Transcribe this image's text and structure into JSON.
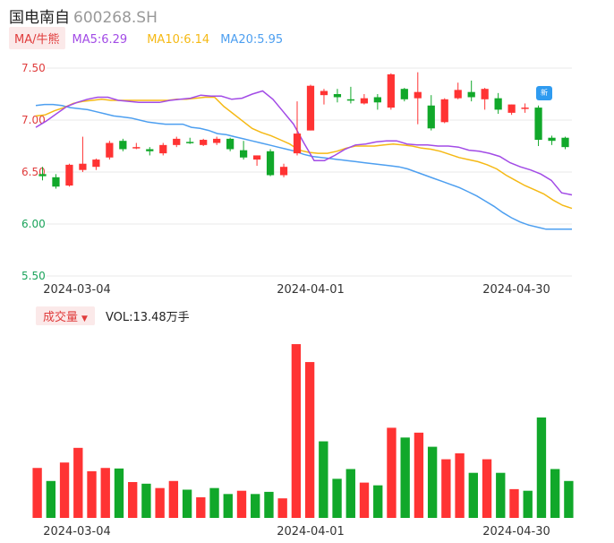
{
  "header": {
    "name": "国电南自",
    "code": "600268.SH"
  },
  "legend": {
    "ma_button": "MA/牛熊",
    "ma5": "MA5:6.29",
    "ma10": "MA10:6.14",
    "ma20": "MA20:5.95"
  },
  "volume_bar": {
    "button": "成交量",
    "text": "VOL:13.48万手"
  },
  "badge": {
    "text": "新"
  },
  "colors": {
    "up": "#ff3333",
    "down": "#11a82a",
    "ma5": "#a24be6",
    "ma10": "#f5b915",
    "ma20": "#4d9ff0"
  },
  "chart_data": [
    {
      "type": "candlestick",
      "y_ticks": [
        "7.50",
        "7.00",
        "6.50",
        "6.00",
        "5.50"
      ],
      "x_ticks": [
        "2024-03-04",
        "2024-04-01",
        "2024-04-30"
      ],
      "ylim": [
        5.5,
        7.5
      ],
      "candles": [
        {
          "o": 6.48,
          "c": 6.46,
          "h": 6.55,
          "l": 6.42
        },
        {
          "o": 6.45,
          "c": 6.36,
          "h": 6.48,
          "l": 6.34
        },
        {
          "o": 6.37,
          "c": 6.57,
          "h": 6.58,
          "l": 6.36
        },
        {
          "o": 6.52,
          "c": 6.58,
          "h": 6.84,
          "l": 6.5
        },
        {
          "o": 6.55,
          "c": 6.62,
          "h": 6.63,
          "l": 6.52
        },
        {
          "o": 6.64,
          "c": 6.78,
          "h": 6.8,
          "l": 6.62
        },
        {
          "o": 6.8,
          "c": 6.72,
          "h": 6.82,
          "l": 6.7
        },
        {
          "o": 6.74,
          "c": 6.74,
          "h": 6.78,
          "l": 6.72
        },
        {
          "o": 6.72,
          "c": 6.7,
          "h": 6.74,
          "l": 6.66
        },
        {
          "o": 6.68,
          "c": 6.76,
          "h": 6.78,
          "l": 6.66
        },
        {
          "o": 6.76,
          "c": 6.82,
          "h": 6.84,
          "l": 6.74
        },
        {
          "o": 6.79,
          "c": 6.78,
          "h": 6.83,
          "l": 6.77
        },
        {
          "o": 6.76,
          "c": 6.81,
          "h": 6.82,
          "l": 6.75
        },
        {
          "o": 6.78,
          "c": 6.82,
          "h": 6.84,
          "l": 6.76
        },
        {
          "o": 6.82,
          "c": 6.72,
          "h": 6.83,
          "l": 6.7
        },
        {
          "o": 6.71,
          "c": 6.64,
          "h": 6.8,
          "l": 6.62
        },
        {
          "o": 6.62,
          "c": 6.66,
          "h": 6.66,
          "l": 6.56
        },
        {
          "o": 6.7,
          "c": 6.47,
          "h": 6.72,
          "l": 6.46
        },
        {
          "o": 6.47,
          "c": 6.55,
          "h": 6.58,
          "l": 6.45
        },
        {
          "o": 6.68,
          "c": 6.87,
          "h": 7.18,
          "l": 6.66
        },
        {
          "o": 6.9,
          "c": 7.33,
          "h": 7.34,
          "l": 6.9
        },
        {
          "o": 7.24,
          "c": 7.28,
          "h": 7.3,
          "l": 7.15
        },
        {
          "o": 7.25,
          "c": 7.22,
          "h": 7.3,
          "l": 7.17
        },
        {
          "o": 7.2,
          "c": 7.19,
          "h": 7.32,
          "l": 7.16
        },
        {
          "o": 7.16,
          "c": 7.21,
          "h": 7.25,
          "l": 7.15
        },
        {
          "o": 7.22,
          "c": 7.17,
          "h": 7.25,
          "l": 7.1
        },
        {
          "o": 7.12,
          "c": 7.44,
          "h": 7.45,
          "l": 7.1
        },
        {
          "o": 7.3,
          "c": 7.2,
          "h": 7.31,
          "l": 7.18
        },
        {
          "o": 7.21,
          "c": 7.27,
          "h": 7.46,
          "l": 6.96
        },
        {
          "o": 7.14,
          "c": 6.92,
          "h": 7.24,
          "l": 6.9
        },
        {
          "o": 6.98,
          "c": 7.2,
          "h": 7.21,
          "l": 6.97
        },
        {
          "o": 7.21,
          "c": 7.29,
          "h": 7.36,
          "l": 7.2
        },
        {
          "o": 7.27,
          "c": 7.22,
          "h": 7.38,
          "l": 7.18
        },
        {
          "o": 7.2,
          "c": 7.3,
          "h": 7.31,
          "l": 7.1
        },
        {
          "o": 7.21,
          "c": 7.1,
          "h": 7.26,
          "l": 7.06
        },
        {
          "o": 7.07,
          "c": 7.15,
          "h": 7.15,
          "l": 7.05
        },
        {
          "o": 7.12,
          "c": 7.12,
          "h": 7.16,
          "l": 7.07
        },
        {
          "o": 7.12,
          "c": 6.81,
          "h": 7.14,
          "l": 6.75
        },
        {
          "o": 6.83,
          "c": 6.8,
          "h": 6.85,
          "l": 6.76
        },
        {
          "o": 6.83,
          "c": 6.74,
          "h": 6.84,
          "l": 6.72
        }
      ],
      "ma5": [
        6.93,
        6.99,
        7.06,
        7.13,
        7.17,
        7.2,
        7.22,
        7.22,
        7.19,
        7.18,
        7.17,
        7.17,
        7.17,
        7.19,
        7.2,
        7.21,
        7.24,
        7.23,
        7.23,
        7.2,
        7.21,
        7.25,
        7.28,
        7.2,
        7.08,
        6.96,
        6.78,
        6.61,
        6.61,
        6.66,
        6.72,
        6.76,
        6.77,
        6.79,
        6.8,
        6.8,
        6.77,
        6.76,
        6.76,
        6.75,
        6.75,
        6.74,
        6.71,
        6.7,
        6.68,
        6.65,
        6.59,
        6.55,
        6.52,
        6.48,
        6.42,
        6.3,
        6.28
      ],
      "ma10": [
        7.04,
        7.05,
        7.09,
        7.12,
        7.16,
        7.18,
        7.19,
        7.2,
        7.19,
        7.19,
        7.19,
        7.19,
        7.19,
        7.19,
        7.19,
        7.2,
        7.2,
        7.21,
        7.22,
        7.22,
        7.13,
        7.06,
        6.99,
        6.92,
        6.88,
        6.85,
        6.81,
        6.77,
        6.71,
        6.69,
        6.68,
        6.68,
        6.7,
        6.73,
        6.75,
        6.75,
        6.75,
        6.76,
        6.77,
        6.76,
        6.75,
        6.73,
        6.72,
        6.7,
        6.67,
        6.64,
        6.62,
        6.6,
        6.57,
        6.53,
        6.47,
        6.42,
        6.37,
        6.33,
        6.29,
        6.23,
        6.18,
        6.15
      ],
      "ma20": [
        7.14,
        7.15,
        7.15,
        7.14,
        7.12,
        7.11,
        7.1,
        7.08,
        7.06,
        7.04,
        7.03,
        7.02,
        7.0,
        6.98,
        6.97,
        6.96,
        6.96,
        6.96,
        6.93,
        6.92,
        6.9,
        6.87,
        6.86,
        6.84,
        6.82,
        6.8,
        6.78,
        6.76,
        6.74,
        6.72,
        6.7,
        6.67,
        6.65,
        6.64,
        6.63,
        6.62,
        6.61,
        6.6,
        6.59,
        6.58,
        6.57,
        6.56,
        6.55,
        6.53,
        6.5,
        6.47,
        6.44,
        6.41,
        6.38,
        6.35,
        6.31,
        6.27,
        6.22,
        6.17,
        6.11,
        6.06,
        6.02,
        5.99,
        5.97,
        5.95,
        5.95,
        5.95,
        5.95
      ]
    },
    {
      "type": "bar",
      "xlabel": "",
      "x_ticks": [
        "2024-03-04",
        "2024-04-01",
        "2024-04-30"
      ],
      "values": [
        9.2,
        6.8,
        10.2,
        12.9,
        8.6,
        9.2,
        9.1,
        6.6,
        6.3,
        5.5,
        6.8,
        5.2,
        3.8,
        5.5,
        4.4,
        5.0,
        4.4,
        4.8,
        3.6,
        32.0,
        28.7,
        14.1,
        7.2,
        9.0,
        6.5,
        6.0,
        16.6,
        14.8,
        15.7,
        13.1,
        10.8,
        11.9,
        8.3,
        10.8,
        8.3,
        5.3,
        5.0,
        18.5,
        9.0,
        6.8
      ],
      "up": [
        true,
        false,
        true,
        true,
        true,
        true,
        false,
        true,
        false,
        true,
        true,
        false,
        true,
        false,
        false,
        true,
        false,
        false,
        true,
        true,
        true,
        false,
        false,
        false,
        true,
        false,
        true,
        false,
        true,
        false,
        true,
        true,
        false,
        true,
        false,
        true,
        false,
        false,
        false,
        false
      ]
    }
  ]
}
